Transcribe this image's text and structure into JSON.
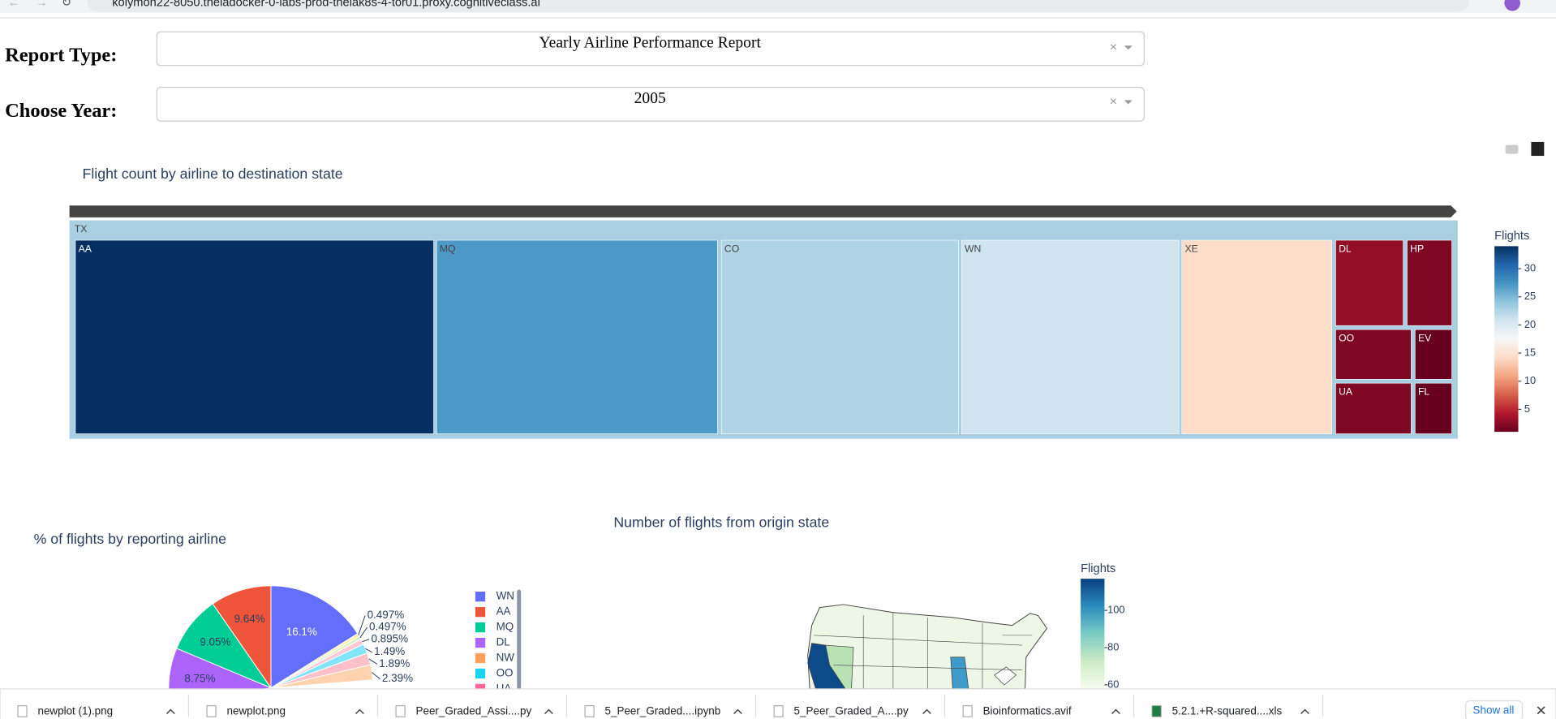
{
  "browser": {
    "url": "kolymon22-8050.theiadocker-0-labs-prod-theiak8s-4-tor01.proxy.cognitiveclass.ai"
  },
  "controls": [
    {
      "label": "Report Type:",
      "value": "Yearly Airline Performance Report"
    },
    {
      "label": "Choose Year:",
      "value": "2005"
    }
  ],
  "treemap": {
    "type": "treemap",
    "title": "Flight count by airline to destination state",
    "root": "TX",
    "labels": [
      "AA",
      "MQ",
      "CO",
      "WN",
      "XE",
      "DL",
      "HP",
      "OO",
      "EV",
      "UA",
      "FL"
    ],
    "values": [
      34,
      27,
      22.6,
      20.8,
      14.3,
      3,
      2,
      2,
      1,
      2,
      1
    ],
    "colorbar": {
      "title": "Flights",
      "ticks": [
        5,
        10,
        15,
        20,
        25,
        30
      ],
      "clim": [
        1,
        34
      ],
      "colors": [
        "#67001f",
        "#b2182b",
        "#d6604d",
        "#f4a582",
        "#fddbc7",
        "#f7f7f7",
        "#d1e5f0",
        "#92c5de",
        "#4393c3",
        "#2166ac",
        "#053061"
      ]
    }
  },
  "pie": {
    "type": "pie",
    "title": "% of flights by reporting airline",
    "values": [
      16.1,
      9.64,
      9.05,
      8.75,
      0.497,
      0.497,
      0.895,
      1.49,
      1.89,
      2.39
    ],
    "value_labels": [
      "16.1%",
      "9.64%",
      "9.05%",
      "8.75%",
      "0.497%",
      "0.497%",
      "0.895%",
      "1.49%",
      "1.89%",
      "2.39%"
    ],
    "colors": [
      "#636efa",
      "#ef553b",
      "#00cc96",
      "#ab63fa",
      "#fff3a8",
      "#d9f2c4",
      "#ffc8d8",
      "#7fe5f7",
      "#ffc0cb",
      "#ffd3b0"
    ],
    "legend": [
      "WN",
      "AA",
      "MQ",
      "DL",
      "NW",
      "OO",
      "UA"
    ],
    "legend_colors": [
      "#636efa",
      "#ef553b",
      "#00cc96",
      "#ab63fa",
      "#ffa15a",
      "#19d3f3",
      "#ff6692"
    ]
  },
  "map": {
    "type": "choropleth",
    "title": "Number of flights from origin state",
    "colorbar": {
      "title": "Flights",
      "ticks": [
        60,
        80,
        100
      ],
      "clim": [
        1,
        117
      ],
      "colors": [
        "#f7fcf0",
        "#ccebc5",
        "#7bccc4",
        "#2b8cbe",
        "#084081"
      ]
    }
  },
  "downloads": {
    "files": [
      "newplot (1).png",
      "newplot.png",
      "Peer_Graded_Assi....py",
      "5_Peer_Graded....ipynb",
      "5_Peer_Graded_A....py",
      "Bioinformatics.avif",
      "5.2.1.+R-squared....xls"
    ],
    "show_all": "Show all"
  }
}
